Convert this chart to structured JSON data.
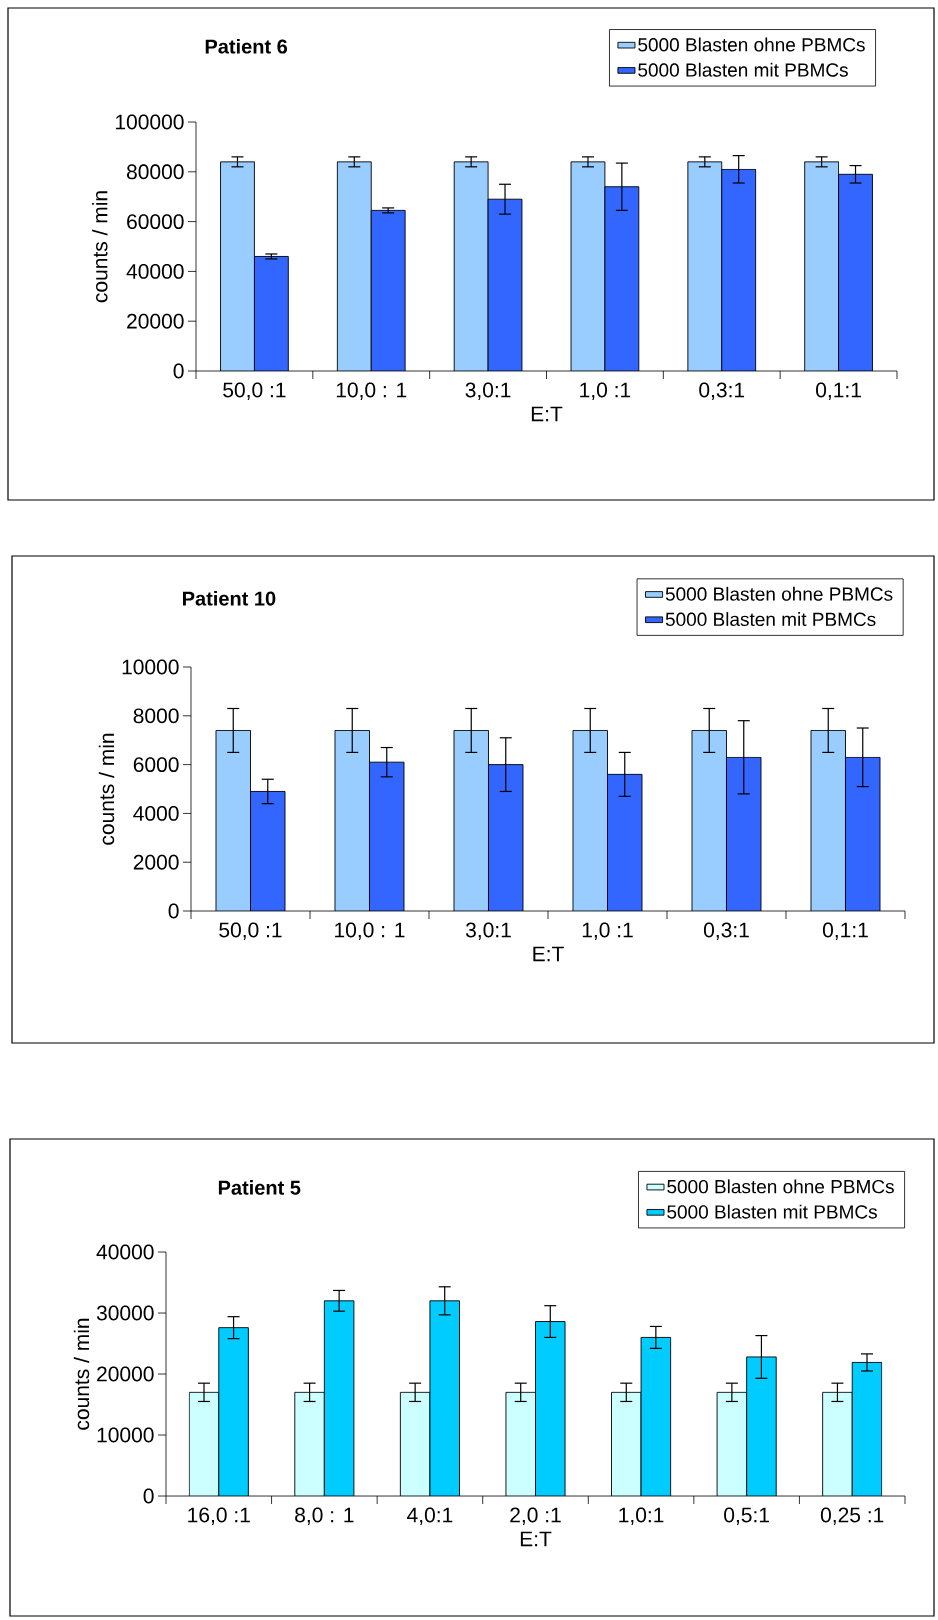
{
  "chart_data": [
    {
      "type": "bar",
      "title": "Patient 6",
      "xlabel": "E:T",
      "ylabel": "counts / min",
      "categories": [
        "50,0 :1",
        "10,0 : 1",
        "3,0:1",
        "1,0 :1",
        "0,3:1",
        "0,1:1"
      ],
      "ylim": [
        0,
        100000
      ],
      "yticks": [
        0,
        20000,
        40000,
        60000,
        80000,
        100000
      ],
      "legend": "top right",
      "series": [
        {
          "name": "5000 Blasten ohne PBMCs",
          "color": "#99ccff",
          "values": [
            84000,
            84000,
            84000,
            84000,
            84000,
            84000
          ],
          "errors": [
            2000,
            2000,
            2000,
            2000,
            2000,
            2000
          ]
        },
        {
          "name": "5000 Blasten mit PBMCs",
          "color": "#3366ff",
          "values": [
            46000,
            64500,
            69000,
            74000,
            81000,
            79000
          ],
          "errors": [
            1000,
            1000,
            6000,
            9500,
            5500,
            3500
          ]
        }
      ]
    },
    {
      "type": "bar",
      "title": "Patient 10",
      "xlabel": "E:T",
      "ylabel": "counts / min",
      "categories": [
        "50,0 :1",
        "10,0 : 1",
        "3,0:1",
        "1,0 :1",
        "0,3:1",
        "0,1:1"
      ],
      "ylim": [
        0,
        10000
      ],
      "yticks": [
        0,
        2000,
        4000,
        6000,
        8000,
        10000
      ],
      "legend": "top right",
      "series": [
        {
          "name": "5000 Blasten ohne PBMCs",
          "color": "#99ccff",
          "values": [
            7400,
            7400,
            7400,
            7400,
            7400,
            7400
          ],
          "errors": [
            900,
            900,
            900,
            900,
            900,
            900
          ]
        },
        {
          "name": "5000 Blasten mit PBMCs",
          "color": "#3366ff",
          "values": [
            4900,
            6100,
            6000,
            5600,
            6300,
            6300
          ],
          "errors": [
            500,
            600,
            1100,
            900,
            1500,
            1200
          ]
        }
      ]
    },
    {
      "type": "bar",
      "title": "Patient 5",
      "xlabel": "E:T",
      "ylabel": "counts / min",
      "categories": [
        "16,0 :1",
        "8,0 : 1",
        "4,0:1",
        "2,0 :1",
        "1,0:1",
        "0,5:1",
        "0,25 :1"
      ],
      "ylim": [
        0,
        40000
      ],
      "yticks": [
        0,
        10000,
        20000,
        30000,
        40000
      ],
      "legend": "top right",
      "series": [
        {
          "name": "5000 Blasten ohne PBMCs",
          "color": "#ccffff",
          "values": [
            17000,
            17000,
            17000,
            17000,
            17000,
            17000,
            17000
          ],
          "errors": [
            1500,
            1500,
            1500,
            1500,
            1500,
            1500,
            1500
          ]
        },
        {
          "name": "5000 Blasten mit PBMCs",
          "color": "#00ccff",
          "values": [
            27600,
            32000,
            32000,
            28600,
            26000,
            22800,
            21900
          ],
          "errors": [
            1800,
            1700,
            2300,
            2600,
            1800,
            3500,
            1400
          ]
        }
      ]
    }
  ]
}
